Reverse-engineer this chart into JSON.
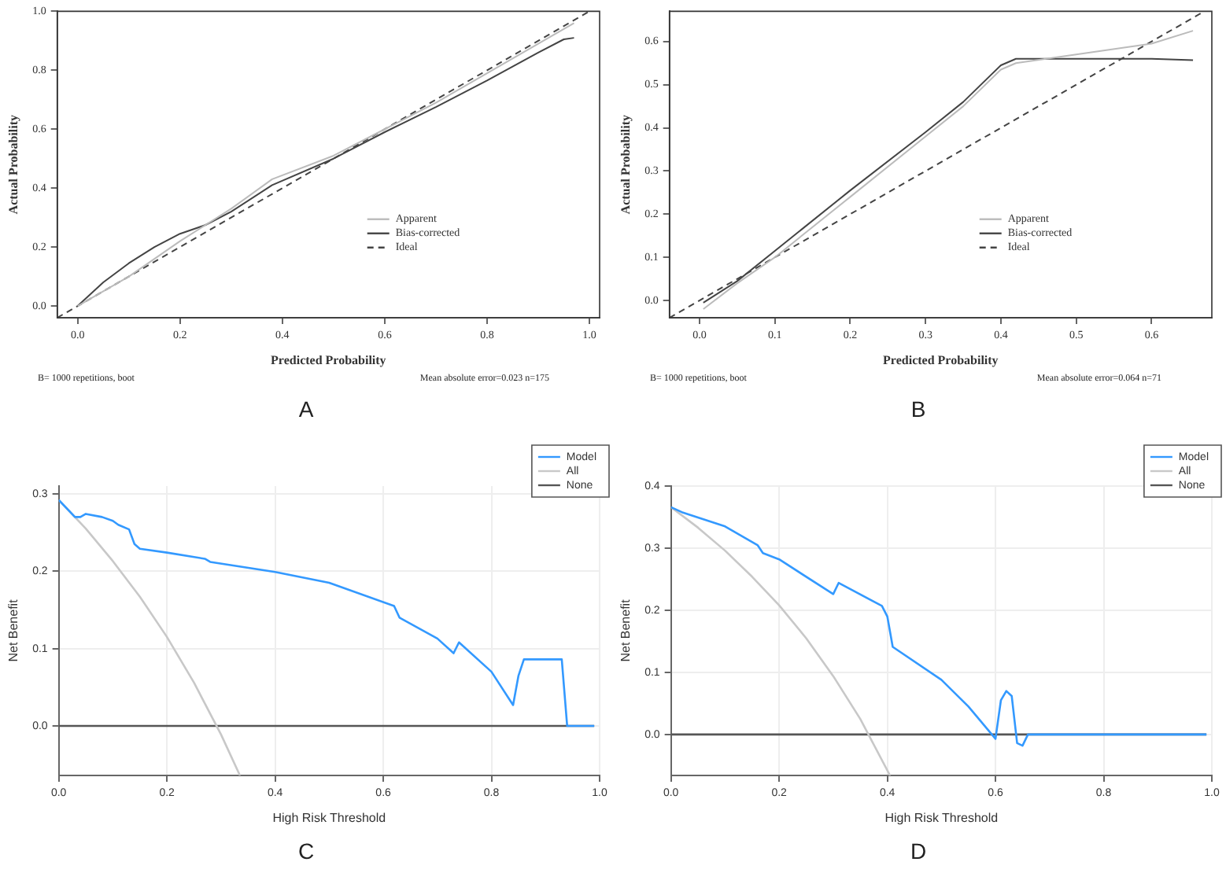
{
  "chart_data": [
    {
      "type": "line",
      "title": "A",
      "xlabel": "Predicted Probability",
      "ylabel": "Actual Probability",
      "annotations": [
        "B= 1000 repetitions, boot",
        "Mean absolute error=0.023 n=175"
      ],
      "xlim": [
        -0.04,
        1.02
      ],
      "ylim": [
        -0.04,
        1.0
      ],
      "xticks": [
        {
          "value": 0,
          "label": "0.0"
        },
        {
          "value": 0.2,
          "label": "0.2"
        },
        {
          "value": 0.4,
          "label": "0.4"
        },
        {
          "value": 0.6,
          "label": "0.6"
        },
        {
          "value": 0.8,
          "label": "0.8"
        },
        {
          "value": 1,
          "label": "1.0"
        }
      ],
      "yticks": [
        {
          "value": 0,
          "label": "0.0"
        },
        {
          "value": 0.2,
          "label": "0.2"
        },
        {
          "value": 0.4,
          "label": "0.4"
        },
        {
          "value": 0.6,
          "label": "0.6"
        },
        {
          "value": 0.8,
          "label": "0.8"
        },
        {
          "value": 1,
          "label": "1.0"
        }
      ],
      "legend": "bottom right",
      "grid": false,
      "series": [
        {
          "name": "Apparent",
          "color": "#bbbbbb",
          "x": [
            0,
            0.1,
            0.2,
            0.3,
            0.38,
            0.5,
            0.6,
            0.7,
            0.8,
            0.9,
            0.97
          ],
          "values": [
            0,
            0.1,
            0.22,
            0.33,
            0.43,
            0.51,
            0.6,
            0.69,
            0.79,
            0.89,
            0.96
          ]
        },
        {
          "name": "Bias-corrected",
          "color": "#444444",
          "x": [
            0,
            0.05,
            0.1,
            0.15,
            0.2,
            0.25,
            0.3,
            0.38,
            0.5,
            0.6,
            0.7,
            0.8,
            0.9,
            0.95,
            0.97
          ],
          "values": [
            0,
            0.08,
            0.145,
            0.2,
            0.245,
            0.275,
            0.32,
            0.41,
            0.5,
            0.59,
            0.675,
            0.765,
            0.86,
            0.905,
            0.91
          ]
        },
        {
          "name": "Ideal",
          "color": "#444444",
          "line_style": "dashed",
          "x": [
            -0.04,
            1.0
          ],
          "values": [
            -0.04,
            1.0
          ]
        }
      ]
    },
    {
      "type": "line",
      "title": "B",
      "xlabel": "Predicted Probability",
      "ylabel": "Actual Probability",
      "annotations": [
        "B= 1000 repetitions, boot",
        "Mean absolute error=0.064 n=71"
      ],
      "xlim": [
        -0.04,
        0.68
      ],
      "ylim": [
        -0.04,
        0.67
      ],
      "xticks": [
        {
          "value": 0,
          "label": "0.0"
        },
        {
          "value": 0.1,
          "label": "0.1"
        },
        {
          "value": 0.2,
          "label": "0.2"
        },
        {
          "value": 0.3,
          "label": "0.3"
        },
        {
          "value": 0.4,
          "label": "0.4"
        },
        {
          "value": 0.5,
          "label": "0.5"
        },
        {
          "value": 0.6,
          "label": "0.6"
        }
      ],
      "yticks": [
        {
          "value": 0,
          "label": "0.0"
        },
        {
          "value": 0.1,
          "label": "0.1"
        },
        {
          "value": 0.2,
          "label": "0.2"
        },
        {
          "value": 0.3,
          "label": "0.3"
        },
        {
          "value": 0.4,
          "label": "0.4"
        },
        {
          "value": 0.5,
          "label": "0.5"
        },
        {
          "value": 0.6,
          "label": "0.6"
        }
      ],
      "legend": "bottom right",
      "grid": false,
      "series": [
        {
          "name": "Apparent",
          "color": "#bbbbbb",
          "x": [
            0.005,
            0.05,
            0.1,
            0.2,
            0.3,
            0.35,
            0.4,
            0.42,
            0.5,
            0.6,
            0.655
          ],
          "values": [
            -0.02,
            0.04,
            0.1,
            0.24,
            0.38,
            0.45,
            0.535,
            0.55,
            0.57,
            0.595,
            0.625
          ]
        },
        {
          "name": "Bias-corrected",
          "color": "#444444",
          "x": [
            0.005,
            0.05,
            0.1,
            0.2,
            0.3,
            0.35,
            0.4,
            0.42,
            0.5,
            0.6,
            0.655
          ],
          "values": [
            -0.005,
            0.045,
            0.115,
            0.255,
            0.39,
            0.46,
            0.545,
            0.56,
            0.56,
            0.56,
            0.557
          ]
        },
        {
          "name": "Ideal",
          "color": "#444444",
          "line_style": "dashed",
          "x": [
            -0.04,
            0.67
          ],
          "values": [
            -0.04,
            0.67
          ]
        }
      ]
    },
    {
      "type": "line",
      "title": "C",
      "xlabel": "High Risk Threshold",
      "ylabel": "Net Benefit",
      "xlim": [
        0,
        1
      ],
      "ylim": [
        -0.064,
        0.31
      ],
      "xticks": [
        {
          "value": 0,
          "label": "0.0"
        },
        {
          "value": 0.2,
          "label": "0.2"
        },
        {
          "value": 0.4,
          "label": "0.4"
        },
        {
          "value": 0.6,
          "label": "0.6"
        },
        {
          "value": 0.8,
          "label": "0.8"
        },
        {
          "value": 1,
          "label": "1.0"
        }
      ],
      "yticks": [
        {
          "value": 0,
          "label": "0.0"
        },
        {
          "value": 0.1,
          "label": "0.1"
        },
        {
          "value": 0.2,
          "label": "0.2"
        },
        {
          "value": 0.3,
          "label": "0.3"
        }
      ],
      "legend": "top right",
      "grid": true,
      "series": [
        {
          "name": "Model",
          "color": "#3399ff",
          "x": [
            0,
            0.03,
            0.04,
            0.05,
            0.08,
            0.1,
            0.11,
            0.13,
            0.14,
            0.15,
            0.2,
            0.27,
            0.28,
            0.4,
            0.5,
            0.62,
            0.63,
            0.7,
            0.73,
            0.74,
            0.8,
            0.84,
            0.85,
            0.86,
            0.93,
            0.94,
            0.99
          ],
          "values": [
            0.292,
            0.27,
            0.27,
            0.274,
            0.27,
            0.265,
            0.26,
            0.254,
            0.235,
            0.229,
            0.224,
            0.216,
            0.212,
            0.199,
            0.185,
            0.155,
            0.14,
            0.113,
            0.094,
            0.108,
            0.07,
            0.027,
            0.065,
            0.086,
            0.086,
            0,
            0
          ]
        },
        {
          "name": "All",
          "color": "#c8c8c8",
          "x": [
            0,
            0.05,
            0.1,
            0.15,
            0.2,
            0.25,
            0.3,
            0.335
          ],
          "values": [
            0.292,
            0.255,
            0.213,
            0.167,
            0.115,
            0.056,
            -0.011,
            -0.064
          ]
        },
        {
          "name": "None",
          "color": "#555555",
          "x": [
            0,
            0.99
          ],
          "values": [
            0,
            0
          ]
        }
      ]
    },
    {
      "type": "line",
      "title": "D",
      "xlabel": "High Risk Threshold",
      "ylabel": "Net Benefit",
      "xlim": [
        0,
        1
      ],
      "ylim": [
        -0.066,
        0.4
      ],
      "xticks": [
        {
          "value": 0,
          "label": "0.0"
        },
        {
          "value": 0.2,
          "label": "0.2"
        },
        {
          "value": 0.4,
          "label": "0.4"
        },
        {
          "value": 0.6,
          "label": "0.6"
        },
        {
          "value": 0.8,
          "label": "0.8"
        },
        {
          "value": 1,
          "label": "1.0"
        }
      ],
      "yticks": [
        {
          "value": 0,
          "label": "0.0"
        },
        {
          "value": 0.1,
          "label": "0.1"
        },
        {
          "value": 0.2,
          "label": "0.2"
        },
        {
          "value": 0.3,
          "label": "0.3"
        },
        {
          "value": 0.4,
          "label": "0.4"
        }
      ],
      "legend": "top right",
      "grid": true,
      "series": [
        {
          "name": "Model",
          "color": "#3399ff",
          "x": [
            0,
            0.02,
            0.1,
            0.16,
            0.17,
            0.2,
            0.3,
            0.31,
            0.39,
            0.4,
            0.41,
            0.5,
            0.55,
            0.6,
            0.61,
            0.62,
            0.63,
            0.64,
            0.65,
            0.66,
            0.99
          ],
          "values": [
            0.366,
            0.358,
            0.335,
            0.305,
            0.292,
            0.282,
            0.226,
            0.244,
            0.207,
            0.19,
            0.141,
            0.088,
            0.045,
            -0.007,
            0.055,
            0.07,
            0.062,
            -0.014,
            -0.018,
            0,
            0
          ]
        },
        {
          "name": "All",
          "color": "#c8c8c8",
          "x": [
            0,
            0.05,
            0.1,
            0.15,
            0.2,
            0.25,
            0.3,
            0.35,
            0.405
          ],
          "values": [
            0.366,
            0.333,
            0.296,
            0.254,
            0.208,
            0.155,
            0.094,
            0.025,
            -0.066
          ]
        },
        {
          "name": "None",
          "color": "#555555",
          "x": [
            0,
            0.99
          ],
          "values": [
            0,
            0
          ]
        }
      ]
    }
  ]
}
